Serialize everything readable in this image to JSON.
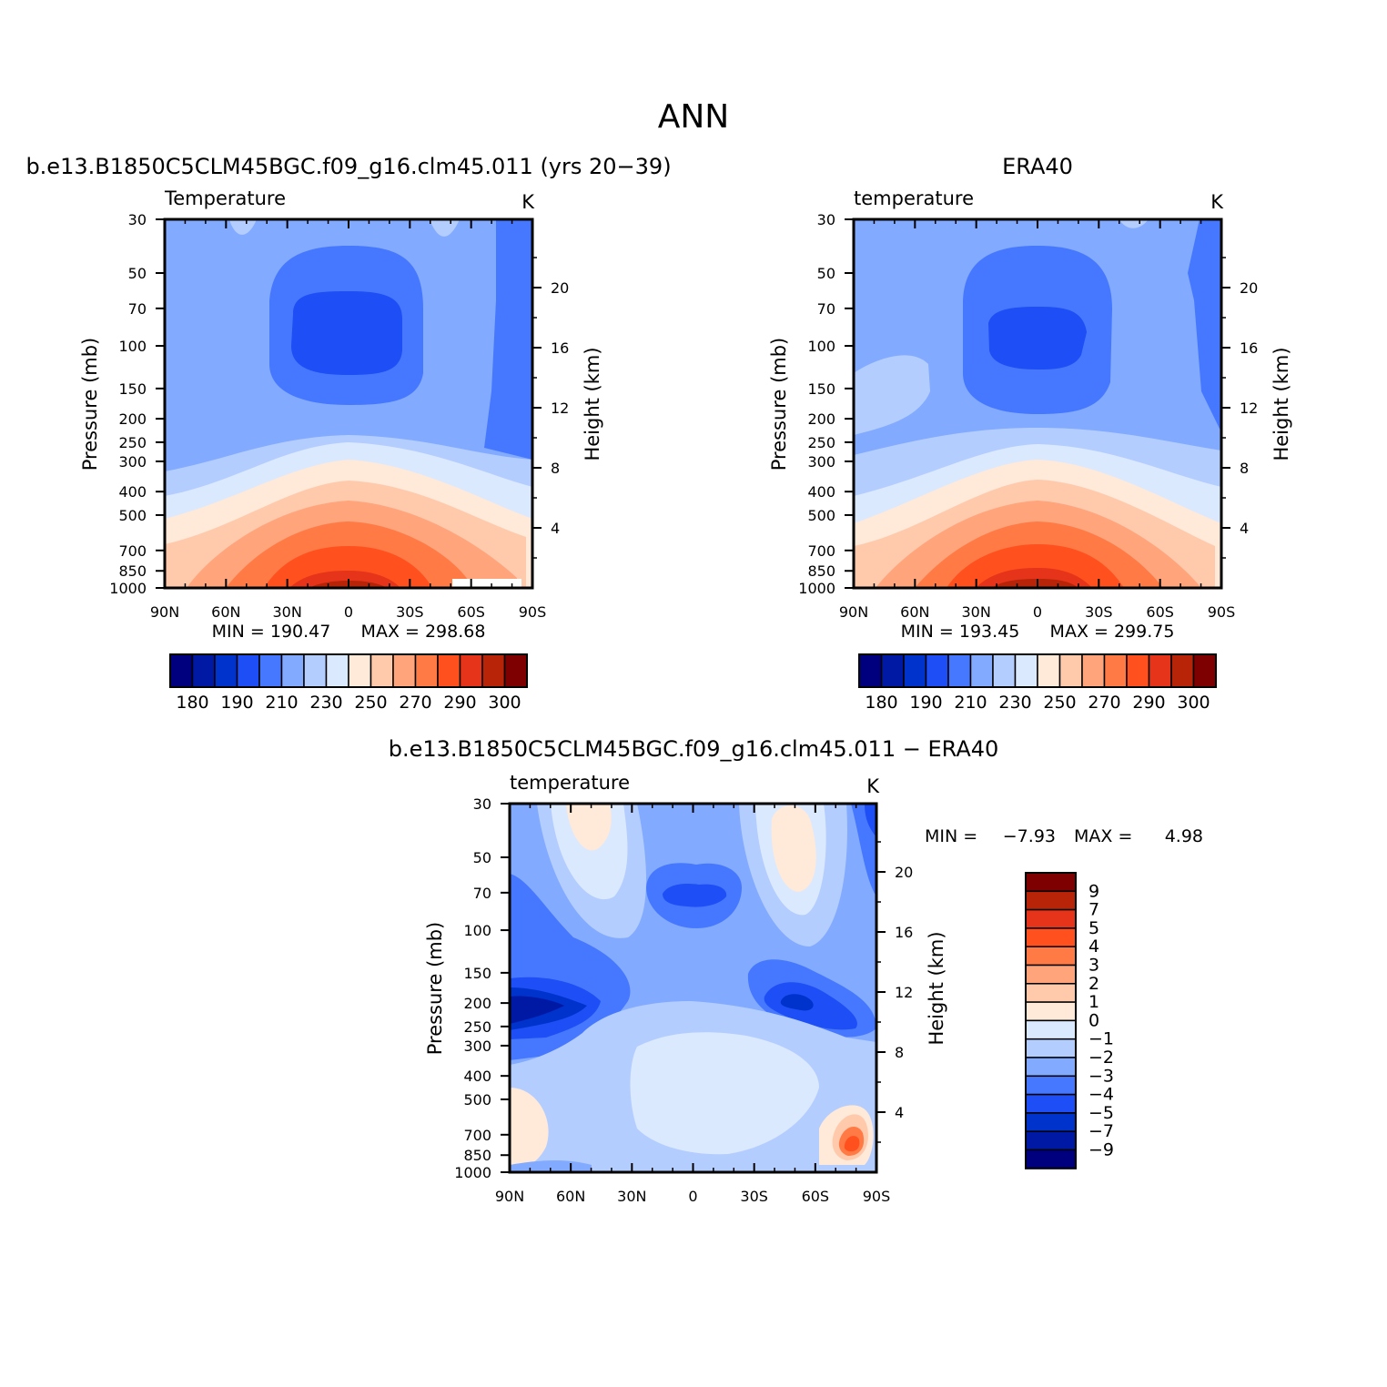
{
  "figure": {
    "title": "ANN"
  },
  "chart_data": [
    {
      "type": "heatmap",
      "title": "b.e13.B1850C5CLM45BGC.f09_g16.clm45.011 (yrs 20−39)",
      "variable": "Temperature",
      "units": "K",
      "ylabel": "Pressure (mb)",
      "ylabel_right": "Height (km)",
      "x_ticks": [
        "90N",
        "60N",
        "30N",
        "0",
        "30S",
        "60S",
        "90S"
      ],
      "y_ticks": [
        "30",
        "50",
        "70",
        "100",
        "150",
        "200",
        "250",
        "300",
        "400",
        "500",
        "700",
        "850",
        "1000"
      ],
      "y_right_ticks": [
        "20",
        "16",
        "12",
        "8",
        "4"
      ],
      "min_label": "MIN = 190.47",
      "max_label": "MAX = 298.68",
      "min": 190.47,
      "max": 298.68,
      "colorbar_ticks": [
        "180",
        "190",
        "210",
        "230",
        "250",
        "270",
        "290",
        "300"
      ],
      "colorbar_levels": [
        180,
        185,
        190,
        200,
        210,
        220,
        230,
        240,
        250,
        260,
        270,
        280,
        290,
        295,
        300
      ]
    },
    {
      "type": "heatmap",
      "title": "ERA40",
      "variable": "temperature",
      "units": "K",
      "ylabel": "Pressure (mb)",
      "ylabel_right": "Height (km)",
      "x_ticks": [
        "90N",
        "60N",
        "30N",
        "0",
        "30S",
        "60S",
        "90S"
      ],
      "y_ticks": [
        "30",
        "50",
        "70",
        "100",
        "150",
        "200",
        "250",
        "300",
        "400",
        "500",
        "700",
        "850",
        "1000"
      ],
      "y_right_ticks": [
        "20",
        "16",
        "12",
        "8",
        "4"
      ],
      "min_label": "MIN = 193.45",
      "max_label": "MAX = 299.75",
      "min": 193.45,
      "max": 299.75,
      "colorbar_ticks": [
        "180",
        "190",
        "210",
        "230",
        "250",
        "270",
        "290",
        "300"
      ],
      "colorbar_levels": [
        180,
        185,
        190,
        200,
        210,
        220,
        230,
        240,
        250,
        260,
        270,
        280,
        290,
        295,
        300
      ]
    },
    {
      "type": "heatmap",
      "title": "b.e13.B1850C5CLM45BGC.f09_g16.clm45.011 − ERA40",
      "variable": "temperature",
      "units": "K",
      "ylabel": "Pressure (mb)",
      "ylabel_right": "Height (km)",
      "x_ticks": [
        "90N",
        "60N",
        "30N",
        "0",
        "30S",
        "60S",
        "90S"
      ],
      "y_ticks": [
        "30",
        "50",
        "70",
        "100",
        "150",
        "200",
        "250",
        "300",
        "400",
        "500",
        "700",
        "850",
        "1000"
      ],
      "y_right_ticks": [
        "20",
        "16",
        "12",
        "8",
        "4"
      ],
      "min_label": "MIN =",
      "min_value": "−7.93",
      "max_label": "MAX =",
      "max_value": "4.98",
      "min": -7.93,
      "max": 4.98,
      "colorbar_ticks": [
        "9",
        "7",
        "5",
        "4",
        "3",
        "2",
        "1",
        "0",
        "−1",
        "−2",
        "−3",
        "−4",
        "−5",
        "−7",
        "−9"
      ]
    }
  ],
  "colors": {
    "diverging": [
      "#00007f",
      "#0019a4",
      "#0032cc",
      "#1e4ef5",
      "#4678ff",
      "#82aaff",
      "#b4cdff",
      "#dbe9ff",
      "#ffe9d8",
      "#ffc9ac",
      "#ffa47b",
      "#ff7a45",
      "#ff501e",
      "#e53419",
      "#b82408",
      "#7f0000"
    ],
    "frame": "#000000"
  }
}
